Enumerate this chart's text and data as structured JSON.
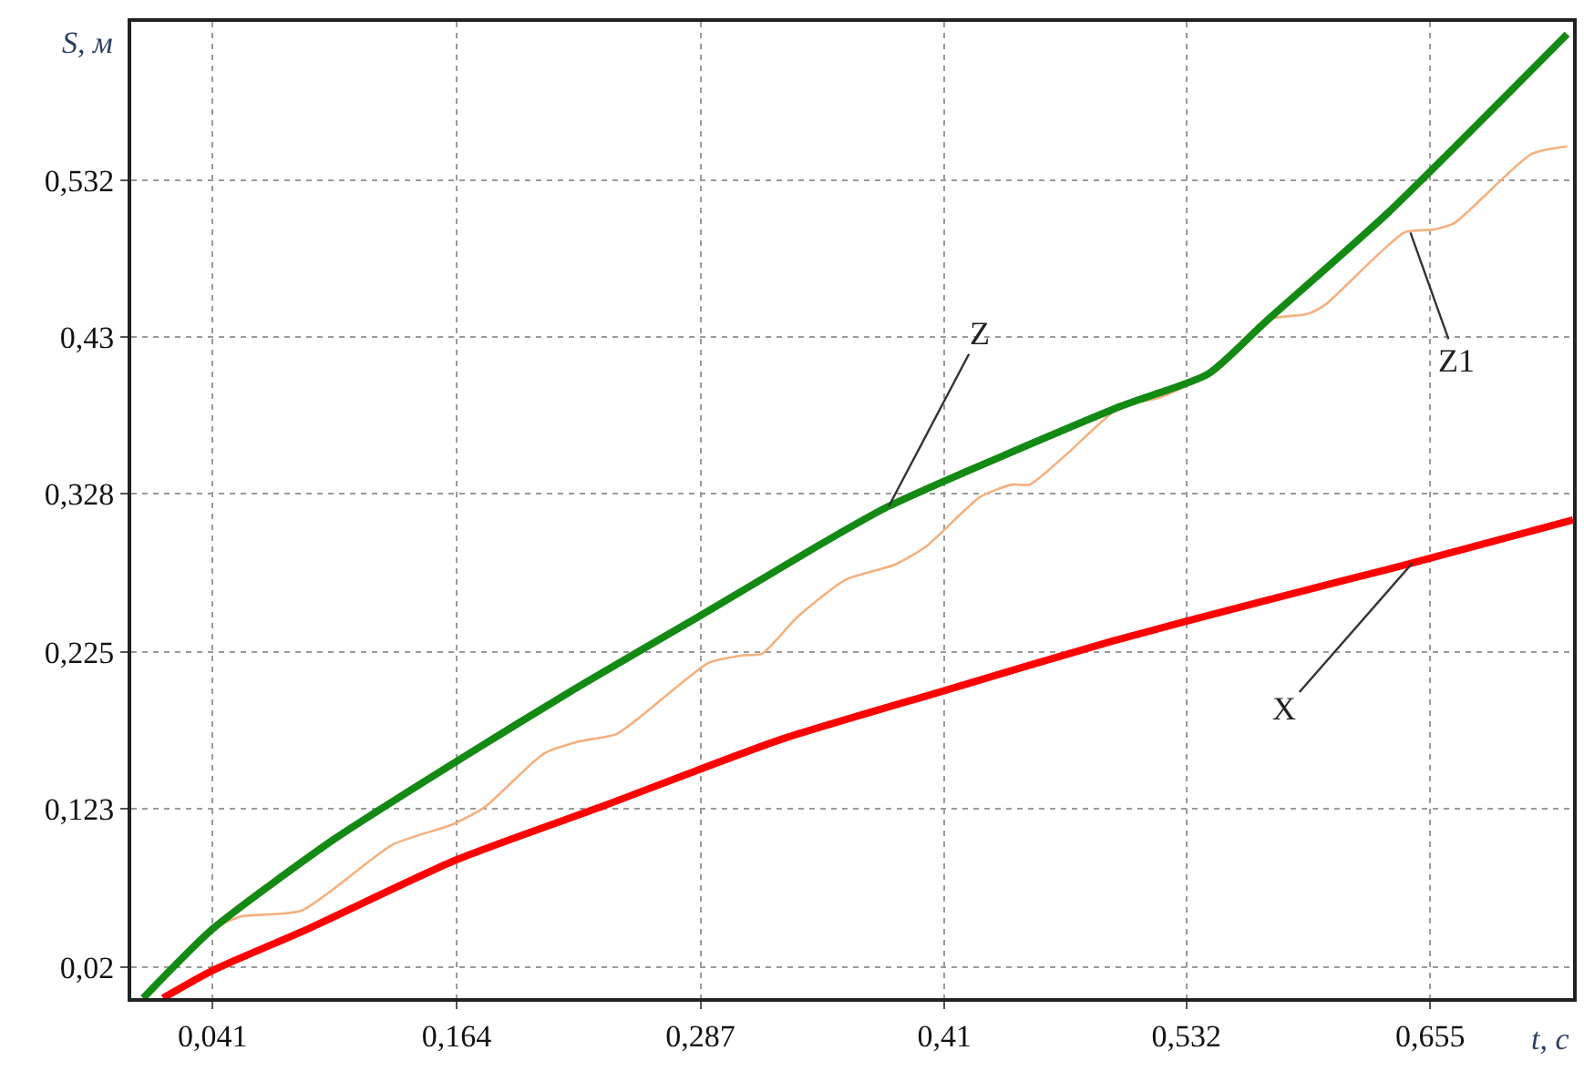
{
  "chart_data": {
    "type": "line",
    "xlabel": "t, с",
    "ylabel": "S, м",
    "xlim": [
      0,
      0.727
    ],
    "ylim": [
      0,
      0.635
    ],
    "xticks": [
      {
        "value": 0.041,
        "label": "0,041"
      },
      {
        "value": 0.164,
        "label": "0,164"
      },
      {
        "value": 0.287,
        "label": "0,287"
      },
      {
        "value": 0.41,
        "label": "0,41"
      },
      {
        "value": 0.532,
        "label": "0,532"
      },
      {
        "value": 0.655,
        "label": "0,655"
      }
    ],
    "yticks": [
      {
        "value": 0.02,
        "label": "0,02"
      },
      {
        "value": 0.123,
        "label": "0,123"
      },
      {
        "value": 0.225,
        "label": "0,225"
      },
      {
        "value": 0.328,
        "label": "0,328"
      },
      {
        "value": 0.43,
        "label": "0,43"
      },
      {
        "value": 0.532,
        "label": "0,532"
      }
    ],
    "grid": true,
    "marker": "none",
    "line_style": "solid",
    "series": [
      {
        "color": "#f5b07e",
        "x": [
          0.006,
          0.041,
          0.055,
          0.086,
          0.132,
          0.162,
          0.178,
          0.208,
          0.226,
          0.245,
          0.291,
          0.309,
          0.318,
          0.336,
          0.36,
          0.385,
          0.401,
          0.428,
          0.444,
          0.453,
          0.471,
          0.499,
          0.517,
          0.535,
          0.545,
          0.572,
          0.593,
          0.602,
          0.642,
          0.657,
          0.667,
          0.706,
          0.724
        ],
        "values": [
          0,
          0.045,
          0.053,
          0.057,
          0.1,
          0.113,
          0.124,
          0.159,
          0.167,
          0.172,
          0.218,
          0.223,
          0.224,
          0.248,
          0.272,
          0.282,
          0.294,
          0.326,
          0.334,
          0.334,
          0.353,
          0.385,
          0.39,
          0.4,
          0.408,
          0.441,
          0.445,
          0.451,
          0.498,
          0.5,
          0.504,
          0.549,
          0.554
        ]
      },
      {
        "color": "#ff0000",
        "x": [
          0.016,
          0.041,
          0.089,
          0.164,
          0.238,
          0.327,
          0.41,
          0.494,
          0.573,
          0.646,
          0.727
        ],
        "values": [
          0,
          0.018,
          0.045,
          0.09,
          0.125,
          0.168,
          0.2,
          0.232,
          0.259,
          0.283,
          0.311
        ]
      },
      {
        "color": "#138a13",
        "x": [
          0.006,
          0.041,
          0.103,
          0.164,
          0.226,
          0.286,
          0.346,
          0.382,
          0.499,
          0.543,
          0.572,
          0.633,
          0.724
        ],
        "values": [
          0,
          0.045,
          0.104,
          0.154,
          0.203,
          0.248,
          0.294,
          0.32,
          0.385,
          0.406,
          0.44,
          0.51,
          0.627
        ]
      }
    ],
    "annotations": [
      {
        "text": "Z",
        "x": 0.382,
        "y": 0.32
      },
      {
        "text": "Z1",
        "x": 0.645,
        "y": 0.498
      },
      {
        "text": "X",
        "x": 0.646,
        "y": 0.283
      }
    ]
  }
}
